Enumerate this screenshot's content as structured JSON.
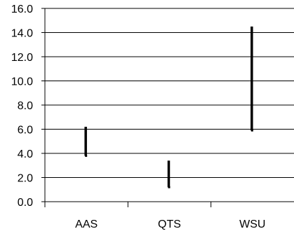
{
  "chart_data": {
    "type": "range",
    "categories": [
      "AAS",
      "QTS",
      "WSU"
    ],
    "series": [
      {
        "low": [
          3.8,
          1.2,
          5.9
        ],
        "high": [
          6.2,
          3.4,
          14.5
        ]
      }
    ],
    "y_ticks": [
      "0.0",
      "2.0",
      "4.0",
      "6.0",
      "8.0",
      "10.0",
      "12.0",
      "14.0",
      "16.0"
    ],
    "ylim": [
      0,
      16
    ],
    "title": "",
    "xlabel": "",
    "ylabel": "",
    "grid": true,
    "colors": {
      "bar": "#000000",
      "grid": "#000000",
      "axis": "#000000"
    }
  }
}
